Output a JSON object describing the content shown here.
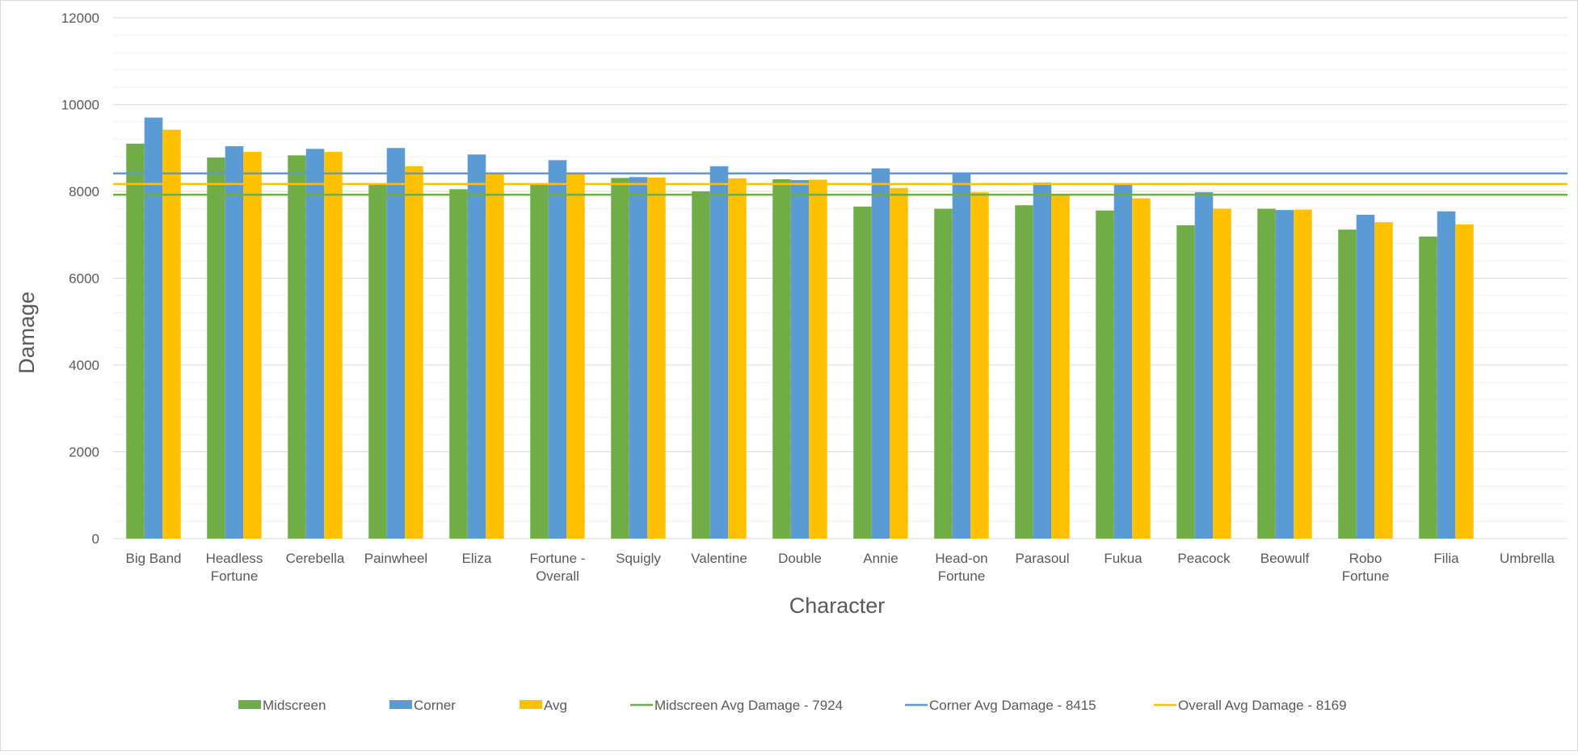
{
  "chart_data": {
    "type": "bar",
    "xlabel": "Character",
    "ylabel": "Damage",
    "ylim": [
      0,
      12000
    ],
    "yticks": [
      0,
      2000,
      4000,
      6000,
      8000,
      10000,
      12000
    ],
    "grid": true,
    "legend_position": "bottom",
    "categories": [
      [
        "Big Band"
      ],
      [
        "Headless",
        "Fortune"
      ],
      [
        "Cerebella"
      ],
      [
        "Painwheel"
      ],
      [
        "Eliza"
      ],
      [
        "Fortune -",
        "Overall"
      ],
      [
        "Squigly"
      ],
      [
        "Valentine"
      ],
      [
        "Double"
      ],
      [
        "Annie"
      ],
      [
        "Head-on",
        "Fortune"
      ],
      [
        "Parasoul"
      ],
      [
        "Fukua"
      ],
      [
        "Peacock"
      ],
      [
        "Beowulf"
      ],
      [
        "Robo",
        "Fortune"
      ],
      [
        "Filia"
      ],
      [
        "Umbrella"
      ]
    ],
    "series": [
      {
        "name": "Midscreen",
        "color": "#70AD47",
        "values": [
          9100,
          8780,
          8830,
          8150,
          8050,
          8150,
          8310,
          8000,
          8280,
          7650,
          7600,
          7680,
          7560,
          7220,
          7600,
          7120,
          6960,
          null
        ]
      },
      {
        "name": "Corner",
        "color": "#5B9BD5",
        "values": [
          9700,
          9040,
          8980,
          9000,
          8850,
          8720,
          8330,
          8580,
          8260,
          8530,
          8400,
          8200,
          8150,
          7980,
          7570,
          7460,
          7540,
          null
        ]
      },
      {
        "name": "Avg",
        "color": "#FFC000",
        "values": [
          9420,
          8910,
          8910,
          8580,
          8420,
          8420,
          8320,
          8300,
          8270,
          8080,
          7980,
          7920,
          7840,
          7600,
          7580,
          7290,
          7240,
          null
        ]
      }
    ],
    "reference_lines": [
      {
        "name": "Midscreen Avg Damage - 7924",
        "value": 7924,
        "color": "#70AD47"
      },
      {
        "name": "Corner Avg Damage - 8415",
        "value": 8415,
        "color": "#5B9BD5"
      },
      {
        "name": "Overall Avg Damage - 8169",
        "value": 8169,
        "color": "#FFC000"
      }
    ]
  }
}
